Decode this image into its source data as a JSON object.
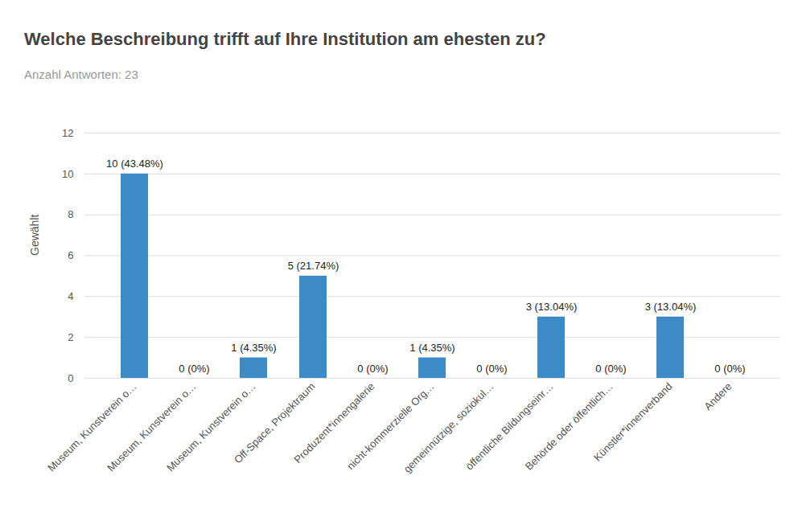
{
  "chart_data": {
    "type": "bar",
    "title": "Welche Beschreibung trifft auf Ihre Institution am ehesten zu?",
    "subtitle": "Anzahl Antworten: 23",
    "y_label": "Gewählt",
    "categories": [
      "Museum, Kunstverein o…",
      "Museum, Kunstverein o…",
      "Museum, Kunstverein o…",
      "Off-Space, Projektraum",
      "Produzent*innengalerie",
      "nicht-kommerzielle Org…",
      "gemeinnützige, soziokul…",
      "öffentliche Bildungseinr…",
      "Behörde oder öffentlich…",
      "Künstler*innenverband",
      "Andere"
    ],
    "values": [
      10,
      0,
      1,
      5,
      0,
      1,
      0,
      3,
      0,
      3,
      0
    ],
    "value_labels": [
      "10 (43.48%)",
      "0 (0%)",
      "1 (4.35%)",
      "5 (21.74%)",
      "0 (0%)",
      "1 (4.35%)",
      "0 (0%)",
      "3 (13.04%)",
      "0 (0%)",
      "3 (13.04%)",
      "0 (0%)"
    ],
    "color": "#3d8bc6",
    "ylim": [
      0,
      12
    ],
    "yticks": [
      0,
      2,
      4,
      6,
      8,
      10,
      12
    ],
    "grid": true,
    "data_labels": true
  }
}
